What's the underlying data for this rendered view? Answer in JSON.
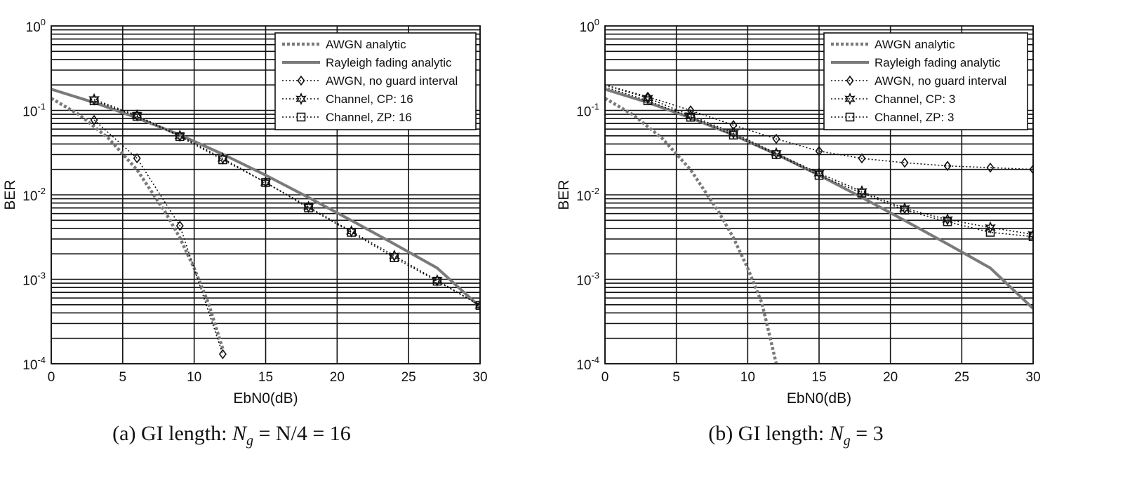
{
  "chart_data": [
    {
      "type": "line",
      "caption": {
        "prefix": "(a) GI length: ",
        "symbol": "N",
        "subscript": "g",
        "expr": " = N/4 = 16"
      },
      "xlabel": "EbN0(dB)",
      "ylabel": "BER",
      "x_scale": "linear",
      "y_scale": "log",
      "xlim": [
        0,
        30
      ],
      "ylim": [
        0.0001,
        1
      ],
      "x_ticks": [
        "0",
        "5",
        "10",
        "15",
        "20",
        "25",
        "30"
      ],
      "y_ticks": [
        {
          "base": "10",
          "exp": "-4"
        },
        {
          "base": "10",
          "exp": "-3"
        },
        {
          "base": "10",
          "exp": "-2"
        },
        {
          "base": "10",
          "exp": "-1"
        },
        {
          "base": "10",
          "exp": "0"
        }
      ],
      "grid": true,
      "legend_position": "top-right",
      "series": [
        {
          "name": "AWGN analytic",
          "style": "dotted-thick",
          "marker": "none",
          "x": [
            0,
            2,
            4,
            6,
            8,
            9,
            10,
            11,
            12
          ],
          "y": [
            0.139,
            0.0879,
            0.0468,
            0.0198,
            0.00615,
            0.0031,
            0.00135,
            0.00052,
            0.00015
          ]
        },
        {
          "name": "Rayleigh fading analytic",
          "style": "solid-thick",
          "marker": "none",
          "x": [
            0,
            3,
            6,
            9,
            12,
            15,
            18,
            21,
            24,
            27,
            30
          ],
          "y": [
            0.178,
            0.124,
            0.0816,
            0.0512,
            0.0303,
            0.0171,
            0.00931,
            0.00497,
            0.00262,
            0.00136,
            0.00047
          ]
        },
        {
          "name": "AWGN, no guard interval",
          "style": "dotted",
          "marker": "diamond",
          "x": [
            3,
            6,
            9,
            12
          ],
          "y": [
            0.0771,
            0.0271,
            0.0043,
            0.00013
          ]
        },
        {
          "name": "Channel, CP: 16",
          "style": "dotted",
          "marker": "star",
          "x": [
            3,
            6,
            9,
            12,
            15,
            18,
            21,
            24,
            27,
            30
          ],
          "y": [
            0.135,
            0.087,
            0.05,
            0.027,
            0.014,
            0.0072,
            0.0037,
            0.0019,
            0.00097,
            0.00049
          ]
        },
        {
          "name": "Channel, ZP: 16",
          "style": "dotted",
          "marker": "square",
          "x": [
            3,
            6,
            9,
            12,
            15,
            18,
            21,
            24,
            27,
            30
          ],
          "y": [
            0.13,
            0.085,
            0.049,
            0.026,
            0.014,
            0.007,
            0.0036,
            0.0018,
            0.00095,
            0.00049
          ]
        }
      ]
    },
    {
      "type": "line",
      "caption": {
        "prefix": "(b) GI length: ",
        "symbol": "N",
        "subscript": "g",
        "expr": " = 3"
      },
      "xlabel": "EbN0(dB)",
      "ylabel": "BER",
      "x_scale": "linear",
      "y_scale": "log",
      "xlim": [
        0,
        30
      ],
      "ylim": [
        0.0001,
        1
      ],
      "x_ticks": [
        "0",
        "5",
        "10",
        "15",
        "20",
        "25",
        "30"
      ],
      "y_ticks": [
        {
          "base": "10",
          "exp": "-4"
        },
        {
          "base": "10",
          "exp": "-3"
        },
        {
          "base": "10",
          "exp": "-2"
        },
        {
          "base": "10",
          "exp": "-1"
        },
        {
          "base": "10",
          "exp": "0"
        }
      ],
      "grid": true,
      "legend_position": "top-right",
      "series": [
        {
          "name": "AWGN analytic",
          "style": "dotted-thick",
          "marker": "none",
          "x": [
            0,
            2,
            4,
            6,
            8,
            9,
            10,
            11,
            12
          ],
          "y": [
            0.139,
            0.0879,
            0.0468,
            0.0198,
            0.00615,
            0.0031,
            0.00135,
            0.00052,
            0.0001
          ]
        },
        {
          "name": "Rayleigh fading analytic",
          "style": "solid-thick",
          "marker": "none",
          "x": [
            0,
            3,
            6,
            9,
            12,
            15,
            18,
            21,
            24,
            27,
            30
          ],
          "y": [
            0.178,
            0.124,
            0.0816,
            0.0512,
            0.0303,
            0.0171,
            0.00931,
            0.00497,
            0.00262,
            0.00136,
            0.00045
          ]
        },
        {
          "name": "AWGN, no guard interval",
          "style": "dotted",
          "marker": "diamond",
          "x": [
            0,
            3,
            6,
            9,
            12,
            15,
            18,
            21,
            24,
            27,
            30
          ],
          "y": [
            0.2,
            0.145,
            0.1,
            0.067,
            0.046,
            0.033,
            0.027,
            0.024,
            0.022,
            0.021,
            0.02
          ]
        },
        {
          "name": "Channel, CP: 3",
          "style": "dotted",
          "marker": "star",
          "x": [
            0,
            3,
            6,
            9,
            12,
            15,
            18,
            21,
            24,
            27,
            30
          ],
          "y": [
            0.2,
            0.14,
            0.087,
            0.054,
            0.031,
            0.018,
            0.011,
            0.0069,
            0.0051,
            0.0041,
            0.0034
          ]
        },
        {
          "name": "Channel, ZP: 3",
          "style": "dotted",
          "marker": "square",
          "x": [
            0,
            3,
            6,
            9,
            12,
            15,
            18,
            21,
            24,
            27,
            30
          ],
          "y": [
            0.19,
            0.13,
            0.083,
            0.051,
            0.03,
            0.017,
            0.0105,
            0.0066,
            0.0048,
            0.0036,
            0.0032
          ]
        }
      ]
    }
  ],
  "colors": {
    "axis": "#111111",
    "grid": "#111111",
    "analytic": "#7a7a7a",
    "marker": "#111111",
    "background": "#ffffff"
  }
}
